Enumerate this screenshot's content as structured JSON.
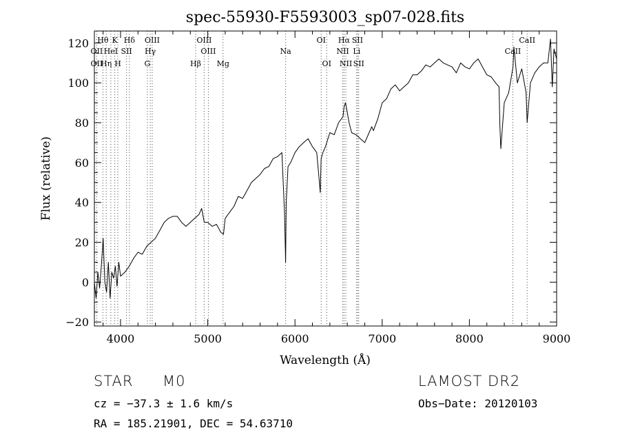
{
  "chart_data": {
    "type": "line",
    "title": "spec-55930-F5593003_sp07-028.fits",
    "xlabel": "Wavelength (Å)",
    "ylabel": "Flux (relative)",
    "xlim": [
      3700,
      9000
    ],
    "ylim": [
      -22,
      126
    ],
    "xticks": [
      4000,
      5000,
      6000,
      7000,
      8000,
      9000
    ],
    "xtick_labels": [
      "4000",
      "5000",
      "6000",
      "7000",
      "8000",
      "9000"
    ],
    "yticks": [
      -20,
      0,
      20,
      40,
      60,
      80,
      100,
      120
    ],
    "ytick_labels": [
      "−20",
      "0",
      "20",
      "40",
      "60",
      "80",
      "100",
      "120"
    ],
    "grid": false,
    "series": [
      {
        "x": [
          3700,
          3720,
          3740,
          3760,
          3780,
          3800,
          3820,
          3840,
          3860,
          3880,
          3900,
          3920,
          3940,
          3960,
          3980,
          4000,
          4050,
          4100,
          4150,
          4200,
          4250,
          4300,
          4350,
          4400,
          4450,
          4500,
          4550,
          4600,
          4650,
          4700,
          4750,
          4800,
          4850,
          4900,
          4930,
          4960,
          5000,
          5050,
          5100,
          5150,
          5180,
          5200,
          5250,
          5300,
          5350,
          5400,
          5450,
          5500,
          5550,
          5600,
          5650,
          5700,
          5750,
          5800,
          5850,
          5880,
          5893,
          5900,
          5920,
          5950,
          6000,
          6050,
          6100,
          6150,
          6200,
          6250,
          6270,
          6290,
          6300,
          6320,
          6350,
          6400,
          6450,
          6500,
          6550,
          6563,
          6580,
          6600,
          6620,
          6650,
          6700,
          6750,
          6800,
          6850,
          6880,
          6900,
          6950,
          7000,
          7050,
          7100,
          7150,
          7200,
          7250,
          7300,
          7350,
          7400,
          7450,
          7500,
          7550,
          7600,
          7650,
          7700,
          7750,
          7800,
          7850,
          7900,
          7950,
          8000,
          8050,
          8100,
          8150,
          8200,
          8250,
          8300,
          8340,
          8350,
          8360,
          8400,
          8450,
          8500,
          8510,
          8550,
          8600,
          8650,
          8662,
          8700,
          8750,
          8800,
          8850,
          8900,
          8930,
          8950,
          8970,
          9000
        ],
        "y": [
          0,
          -8,
          5,
          -3,
          8,
          22,
          0,
          -5,
          10,
          -8,
          5,
          2,
          8,
          -2,
          10,
          3,
          5,
          8,
          12,
          15,
          14,
          18,
          20,
          22,
          26,
          30,
          32,
          33,
          33,
          30,
          28,
          30,
          32,
          34,
          37,
          30,
          30,
          28,
          29,
          25,
          24,
          32,
          35,
          38,
          43,
          42,
          46,
          50,
          52,
          54,
          57,
          58,
          62,
          63,
          65,
          35,
          10,
          40,
          58,
          60,
          65,
          68,
          70,
          72,
          68,
          65,
          55,
          45,
          62,
          65,
          68,
          75,
          74,
          80,
          83,
          88,
          90,
          85,
          80,
          75,
          74,
          72,
          70,
          75,
          78,
          76,
          82,
          90,
          92,
          97,
          99,
          96,
          98,
          100,
          104,
          104,
          106,
          109,
          108,
          110,
          112,
          110,
          109,
          108,
          105,
          110,
          108,
          107,
          110,
          112,
          108,
          104,
          103,
          100,
          98,
          78,
          67,
          90,
          95,
          108,
          118,
          100,
          107,
          95,
          80,
          100,
          105,
          108,
          110,
          110,
          122,
          98,
          117,
          112
        ]
      }
    ],
    "lines": [
      {
        "name": "Hθ",
        "wavelength": 3797.9,
        "row": 0
      },
      {
        "name": "K",
        "wavelength": 3933.7,
        "row": 0
      },
      {
        "name": "Hδ",
        "wavelength": 4101.7,
        "row": 0
      },
      {
        "name": "OIII",
        "wavelength": 4363.2,
        "row": 0
      },
      {
        "name": "OIII",
        "wavelength": 4958.9,
        "row": 0
      },
      {
        "name": "OI",
        "wavelength": 6300.3,
        "row": 0
      },
      {
        "name": "Hα",
        "wavelength": 6562.8,
        "row": 0
      },
      {
        "name": "SII",
        "wavelength": 6716.4,
        "row": 0
      },
      {
        "name": "CaII",
        "wavelength": 8662.1,
        "row": 0
      },
      {
        "name": "OII",
        "wavelength": 3727.0,
        "row": 1
      },
      {
        "name": "HeI",
        "wavelength": 3888.6,
        "row": 1
      },
      {
        "name": "SII",
        "wavelength": 4068.6,
        "row": 1
      },
      {
        "name": "Hγ",
        "wavelength": 4340.5,
        "row": 1
      },
      {
        "name": "OIII",
        "wavelength": 5006.8,
        "row": 1
      },
      {
        "name": "Na",
        "wavelength": 5892.9,
        "row": 1
      },
      {
        "name": "NII",
        "wavelength": 6548.1,
        "row": 1
      },
      {
        "name": "Li",
        "wavelength": 6707.8,
        "row": 1
      },
      {
        "name": "CaII",
        "wavelength": 8498.0,
        "row": 1
      },
      {
        "name": "OII",
        "wavelength": 3727.0,
        "row": 2
      },
      {
        "name": "Hη",
        "wavelength": 3835.4,
        "row": 2
      },
      {
        "name": "H",
        "wavelength": 3968.5,
        "row": 2
      },
      {
        "name": "G",
        "wavelength": 4307.7,
        "row": 2
      },
      {
        "name": "Hβ",
        "wavelength": 4861.3,
        "row": 2
      },
      {
        "name": "Mg",
        "wavelength": 5175.3,
        "row": 2
      },
      {
        "name": "OI",
        "wavelength": 6363.8,
        "row": 2
      },
      {
        "name": "NII",
        "wavelength": 6583.5,
        "row": 2
      },
      {
        "name": "SII",
        "wavelength": 6730.8,
        "row": 2
      }
    ]
  },
  "info": {
    "object_type": "STAR",
    "subclass": "M0",
    "survey": "LAMOST DR2",
    "redshift": "cz = −37.3 ± 1.6 km/s",
    "obs_date": "Obs−Date: 20120103",
    "coords": "RA = 185.21901, DEC =  54.63710"
  }
}
